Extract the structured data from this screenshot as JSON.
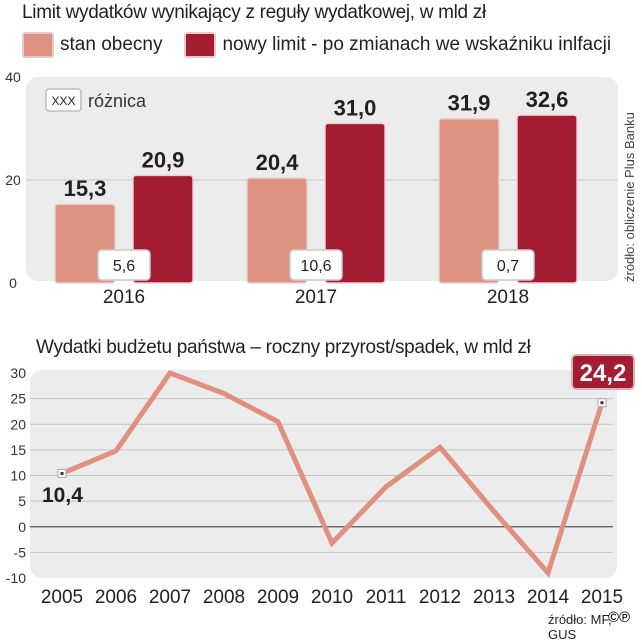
{
  "titles": {
    "top": "Limit wydatków wynikający z reguły wydatkowej, w mld zł",
    "bottom": "Wydatki budżetu państwa – roczny przyrost/spadek, w mld zł"
  },
  "legend": [
    {
      "label": "stan obecny",
      "color": "#de9382"
    },
    {
      "label": "nowy limit - po zmianach we wskaźniku inlfacji",
      "color": "#a31c32"
    }
  ],
  "sources": {
    "top": "źródło: obliczenie Plus Banku",
    "bottom": "źródło: MF, GUS"
  },
  "chart_data": [
    {
      "type": "bar",
      "title": "Limit wydatków wynikający z reguły wydatkowej, w mld zł",
      "categories": [
        "2016",
        "2017",
        "2018"
      ],
      "series": [
        {
          "name": "stan obecny",
          "values": [
            15.3,
            20.4,
            31.9
          ],
          "labels": [
            "15,3",
            "20,4",
            "31,9"
          ],
          "color": "#de9382"
        },
        {
          "name": "nowy limit - po zmianach we wskaźniku inlfacji",
          "values": [
            20.9,
            31.0,
            32.6
          ],
          "labels": [
            "20,9",
            "31,0",
            "32,6"
          ],
          "color": "#a31c32"
        }
      ],
      "differences": {
        "legend_key": "XXX",
        "legend_label": "różnica",
        "labels": [
          "5,6",
          "10,6",
          "0,7"
        ],
        "values": [
          5.6,
          10.6,
          0.7
        ]
      },
      "yticks": [
        "0",
        "20",
        "40"
      ],
      "ylim": [
        0,
        40
      ],
      "grid": true,
      "xlabel": "",
      "ylabel": ""
    },
    {
      "type": "line",
      "title": "Wydatki budżetu państwa – roczny przyrost/spadek, w mld zł",
      "x": [
        "2005",
        "2006",
        "2007",
        "2008",
        "2009",
        "2010",
        "2011",
        "2012",
        "2013",
        "2014",
        "2015"
      ],
      "series": [
        {
          "name": "roczny przyrost/spadek",
          "values": [
            10.4,
            14.8,
            30.0,
            26.0,
            20.5,
            -3.2,
            7.8,
            15.5,
            3.0,
            -9.0,
            24.2
          ],
          "color": "#e0907e"
        }
      ],
      "annotations": [
        {
          "x": "2005",
          "label": "10,4"
        },
        {
          "x": "2015",
          "label": "24,2"
        }
      ],
      "yticks": [
        "30",
        "25",
        "20",
        "15",
        "10",
        "5",
        "0",
        "-5",
        "-10"
      ],
      "ylim": [
        -10,
        30
      ],
      "grid": true,
      "xlabel": "",
      "ylabel": ""
    }
  ]
}
